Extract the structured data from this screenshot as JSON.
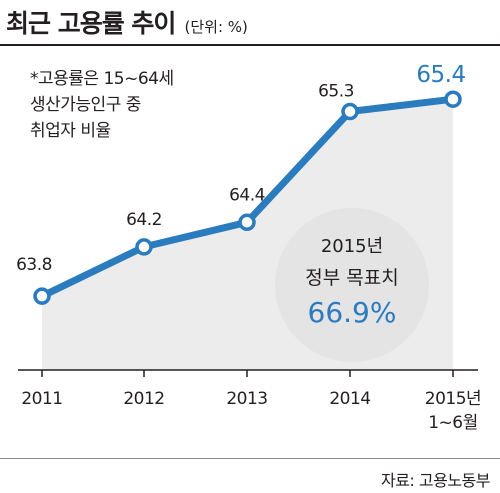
{
  "header": {
    "title": "최근 고용률 추이",
    "unit": "(단위: %)"
  },
  "note": {
    "lines": [
      "*고용률은 15~64세",
      "생산가능인구 중",
      "취업자 비율"
    ]
  },
  "target": {
    "year": "2015년",
    "label": "정부 목표치",
    "value": "66.9%"
  },
  "source": "자료: 고용노동부",
  "colors": {
    "line": "#2b7bbf",
    "highlight": "#2b7bbf",
    "area": "#ececec",
    "circle": "#e4e4e4"
  },
  "chart_data": {
    "type": "line",
    "categories": [
      "2011",
      "2012",
      "2013",
      "2014",
      "2015년 1~6월"
    ],
    "tick_labels": [
      [
        "2011"
      ],
      [
        "2012"
      ],
      [
        "2013"
      ],
      [
        "2014"
      ],
      [
        "2015년",
        "1~6월"
      ]
    ],
    "values": [
      63.8,
      64.2,
      64.4,
      65.3,
      65.4
    ],
    "value_labels": [
      "63.8",
      "64.2",
      "64.4",
      "65.3",
      "65.4"
    ],
    "highlight_index": 4,
    "ylim": [
      63.2,
      65.8
    ],
    "grid": false,
    "area_fill": true
  }
}
